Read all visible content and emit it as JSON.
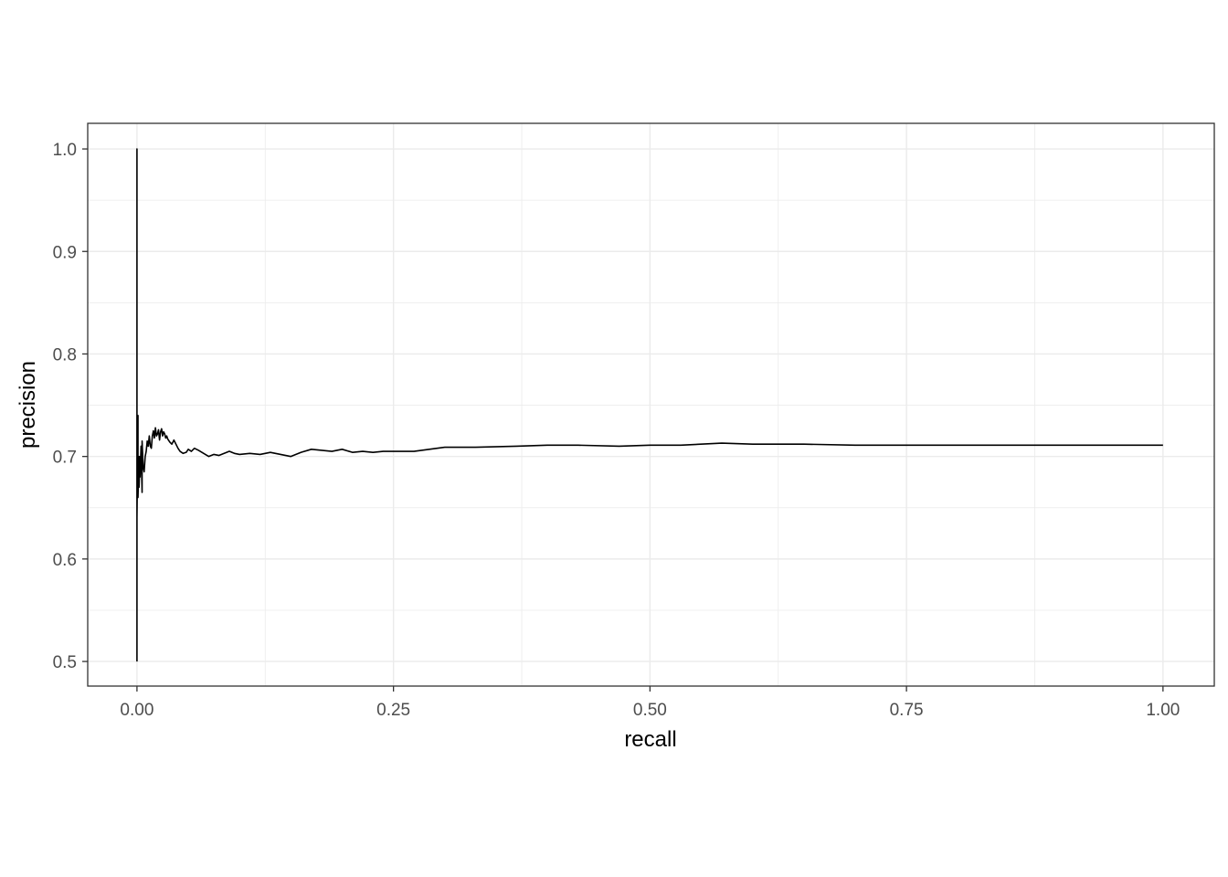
{
  "chart_data": {
    "type": "line",
    "title": "",
    "xlabel": "recall",
    "ylabel": "precision",
    "xlim": [
      -0.048,
      1.05
    ],
    "ylim": [
      0.476,
      1.025
    ],
    "x_ticks": [
      0.0,
      0.25,
      0.5,
      0.75,
      1.0
    ],
    "x_tick_labels": [
      "0.00",
      "0.25",
      "0.50",
      "0.75",
      "1.00"
    ],
    "y_ticks": [
      0.5,
      0.6,
      0.7,
      0.8,
      0.9,
      1.0
    ],
    "y_tick_labels": [
      "0.5",
      "0.6",
      "0.7",
      "0.8",
      "0.9",
      "1.0"
    ],
    "grid": true,
    "theme": "bw",
    "colors": {
      "line": "#000000",
      "grid": "#ebebeb",
      "panel_border": "#333333",
      "text": "#4d4d4d"
    },
    "series": [
      {
        "x": [
          0.0,
          0.0,
          0.0,
          0.001,
          0.001,
          0.002,
          0.002,
          0.003,
          0.003,
          0.004,
          0.005,
          0.005,
          0.006,
          0.007,
          0.008,
          0.009,
          0.01,
          0.011,
          0.012,
          0.013,
          0.014,
          0.015,
          0.016,
          0.017,
          0.018,
          0.019,
          0.02,
          0.021,
          0.022,
          0.023,
          0.024,
          0.025,
          0.026,
          0.027,
          0.028,
          0.029,
          0.03,
          0.032,
          0.034,
          0.036,
          0.038,
          0.04,
          0.042,
          0.045,
          0.048,
          0.05,
          0.053,
          0.056,
          0.06,
          0.065,
          0.07,
          0.075,
          0.08,
          0.085,
          0.09,
          0.095,
          0.1,
          0.11,
          0.12,
          0.13,
          0.14,
          0.15,
          0.16,
          0.17,
          0.18,
          0.19,
          0.2,
          0.21,
          0.22,
          0.23,
          0.24,
          0.25,
          0.27,
          0.3,
          0.33,
          0.37,
          0.4,
          0.43,
          0.47,
          0.5,
          0.53,
          0.57,
          0.6,
          0.65,
          0.7,
          0.75,
          0.8,
          0.85,
          0.9,
          0.95,
          0.98,
          1.0
        ],
        "y": [
          0.5,
          1.0,
          0.64,
          0.74,
          0.66,
          0.7,
          0.67,
          0.7,
          0.68,
          0.71,
          0.665,
          0.715,
          0.69,
          0.685,
          0.7,
          0.705,
          0.715,
          0.71,
          0.72,
          0.71,
          0.708,
          0.72,
          0.725,
          0.718,
          0.728,
          0.72,
          0.722,
          0.726,
          0.716,
          0.724,
          0.727,
          0.72,
          0.724,
          0.722,
          0.718,
          0.72,
          0.717,
          0.714,
          0.712,
          0.716,
          0.712,
          0.708,
          0.705,
          0.703,
          0.704,
          0.707,
          0.705,
          0.708,
          0.706,
          0.703,
          0.7,
          0.702,
          0.701,
          0.703,
          0.705,
          0.703,
          0.702,
          0.703,
          0.702,
          0.704,
          0.702,
          0.7,
          0.704,
          0.707,
          0.706,
          0.705,
          0.707,
          0.704,
          0.705,
          0.704,
          0.705,
          0.705,
          0.705,
          0.709,
          0.709,
          0.71,
          0.711,
          0.711,
          0.71,
          0.711,
          0.711,
          0.713,
          0.712,
          0.712,
          0.711,
          0.711,
          0.711,
          0.711,
          0.711,
          0.711,
          0.711,
          0.711
        ]
      }
    ]
  }
}
